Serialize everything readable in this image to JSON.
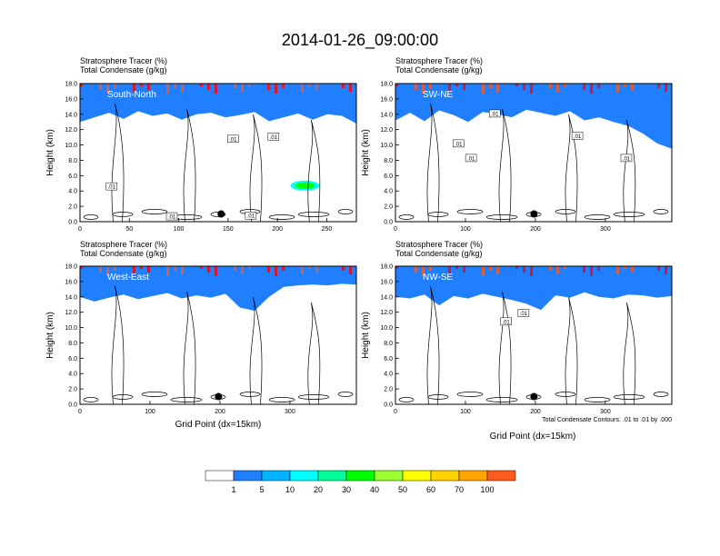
{
  "figure_title": "2014-01-26_09:00:00",
  "panel_subtitle_line1": "Stratosphere Tracer   (%)",
  "panel_subtitle_line2": "Total Condensate   (g/kg)",
  "y_axis_label": "Height (km)",
  "x_axis_label": "Grid Point (dx=15km)",
  "contour_note": "Total Condensate Contours: .01 to .01 by .000",
  "colorbar_labels": [
    "1",
    "5",
    "10",
    "20",
    "30",
    "40",
    "50",
    "60",
    "70",
    "100"
  ],
  "colors": {
    "levels": [
      "#ffffff",
      "#1f7fff",
      "#00b4ff",
      "#00ffff",
      "#00ff96",
      "#00ff00",
      "#9bff32",
      "#ffff00",
      "#ffd200",
      "#ffa500",
      "#ff5a1e",
      "#ff0000"
    ]
  },
  "chart_data": [
    {
      "type": "contour-cross-section",
      "label": "South-North",
      "xlim": [
        0,
        280
      ],
      "xticks": [
        "0",
        "50",
        "100",
        "150",
        "200",
        "250"
      ],
      "ylim": [
        0,
        18
      ],
      "yticks": [
        "0.0",
        "2.0",
        "4.0",
        "6.0",
        "8.0",
        "10.0",
        "12.0",
        "14.0",
        "16.0",
        "18.0"
      ],
      "tracer_base_km": [
        13.0,
        13.6,
        14.2,
        13.4,
        14.4,
        13.8,
        14.1,
        13.3,
        14.0,
        14.2,
        13.6,
        13.9,
        14.3,
        13.1,
        13.6,
        14.1,
        13.3,
        14.0,
        13.8,
        12.8
      ],
      "contour_labels": [
        {
          "text": ".01",
          "x": 32,
          "y": 4.6
        },
        {
          "text": ".01",
          "x": 155,
          "y": 10.8
        },
        {
          "text": ".01",
          "x": 196,
          "y": 11.1
        },
        {
          "text": ".01",
          "x": 93,
          "y": 0.7
        },
        {
          "text": ".01",
          "x": 173,
          "y": 0.8
        }
      ],
      "marker": {
        "x": 143,
        "y": 1.0
      },
      "blob": {
        "x": 228,
        "y": 4.7,
        "value": 20
      }
    },
    {
      "type": "contour-cross-section",
      "label": "SW-NE",
      "xlim": [
        0,
        395
      ],
      "xticks": [
        "0",
        "100",
        "200",
        "300"
      ],
      "ylim": [
        0,
        18
      ],
      "yticks": [
        "0.0",
        "2.0",
        "4.0",
        "6.0",
        "8.0",
        "10.0",
        "12.0",
        "14.0",
        "16.0",
        "18.0"
      ],
      "tracer_base_km": [
        13.2,
        14.2,
        13.1,
        14.5,
        13.9,
        13.0,
        14.3,
        14.0,
        13.6,
        14.6,
        14.2,
        13.8,
        14.4,
        13.2,
        13.6,
        13.0,
        12.5,
        11.5,
        10.2,
        9.5
      ],
      "contour_labels": [
        {
          "text": ".01",
          "x": 142,
          "y": 14.1
        },
        {
          "text": ".01",
          "x": 90,
          "y": 10.2
        },
        {
          "text": ".01",
          "x": 108,
          "y": 8.3
        },
        {
          "text": ".01",
          "x": 260,
          "y": 11.2
        },
        {
          "text": ".01",
          "x": 330,
          "y": 8.3
        }
      ],
      "marker": {
        "x": 198,
        "y": 1.0
      }
    },
    {
      "type": "contour-cross-section",
      "label": "West-East",
      "xlim": [
        0,
        395
      ],
      "xticks": [
        "0",
        "100",
        "200",
        "300"
      ],
      "ylim": [
        0,
        18
      ],
      "yticks": [
        "0.0",
        "2.0",
        "4.0",
        "6.0",
        "8.0",
        "10.0",
        "12.0",
        "14.0",
        "16.0",
        "18.0"
      ],
      "tracer_base_km": [
        14.0,
        13.4,
        13.9,
        14.3,
        13.7,
        14.1,
        14.5,
        13.8,
        14.2,
        13.9,
        14.4,
        12.6,
        12.2,
        14.0,
        15.3,
        15.5,
        15.6,
        15.5,
        15.7,
        15.6
      ],
      "contour_labels": [],
      "marker": {
        "x": 198,
        "y": 1.0
      }
    },
    {
      "type": "contour-cross-section",
      "label": "NW-SE",
      "xlim": [
        0,
        395
      ],
      "xticks": [
        "0",
        "100",
        "200",
        "300"
      ],
      "ylim": [
        0,
        18
      ],
      "yticks": [
        "0.0",
        "2.0",
        "4.0",
        "6.0",
        "8.0",
        "10.0",
        "12.0",
        "14.0",
        "16.0",
        "18.0"
      ],
      "tracer_base_km": [
        14.0,
        13.8,
        14.3,
        12.9,
        14.1,
        13.8,
        14.4,
        14.0,
        13.6,
        13.1,
        12.3,
        14.2,
        13.9,
        14.6,
        14.0,
        13.8,
        14.3,
        14.2,
        13.9,
        14.1
      ],
      "contour_labels": [
        {
          "text": ".01",
          "x": 158,
          "y": 10.8
        },
        {
          "text": ".01",
          "x": 183,
          "y": 11.9
        }
      ],
      "marker": {
        "x": 198,
        "y": 1.0
      }
    }
  ]
}
